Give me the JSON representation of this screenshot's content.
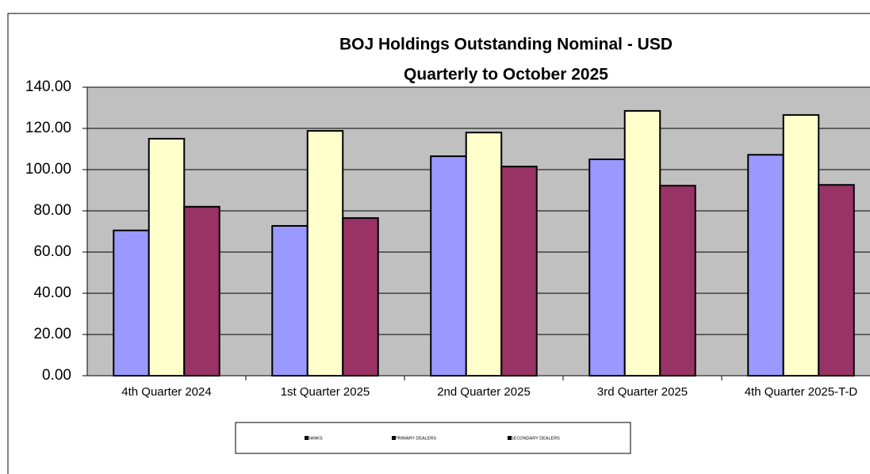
{
  "chart_data": {
    "type": "bar",
    "title": [
      "BOJ Holdings Outstanding Nominal - USD",
      "Quarterly to October 2025"
    ],
    "categories": [
      "4th Quarter 2024",
      "1st Quarter 2025",
      "2nd Quarter 2025",
      "3rd Quarter 2025",
      "4th Quarter 2025-T-D"
    ],
    "series": [
      {
        "name": "BANKS",
        "color": "#9999ff",
        "values": [
          70.5,
          72.7,
          106.5,
          105,
          107.2
        ]
      },
      {
        "name": "PRIMARY DEALERS",
        "color": "#ffffcc",
        "values": [
          115,
          118.8,
          118,
          128.5,
          126.5
        ]
      },
      {
        "name": "SECONDARY DEALERS",
        "color": "#993366",
        "values": [
          82,
          76.5,
          101.5,
          92.2,
          92.6
        ]
      }
    ],
    "ylim": [
      0,
      140
    ],
    "yticks": [
      {
        "value": 0,
        "label": "0.00"
      },
      {
        "value": 20,
        "label": "20.00"
      },
      {
        "value": 40,
        "label": "40.00"
      },
      {
        "value": 60,
        "label": "60.00"
      },
      {
        "value": 80,
        "label": "80.00"
      },
      {
        "value": 100,
        "label": "100.00"
      },
      {
        "value": 120,
        "label": "120.00"
      },
      {
        "value": 140,
        "label": "140.00"
      }
    ],
    "grid": true,
    "legend": "bottom"
  }
}
